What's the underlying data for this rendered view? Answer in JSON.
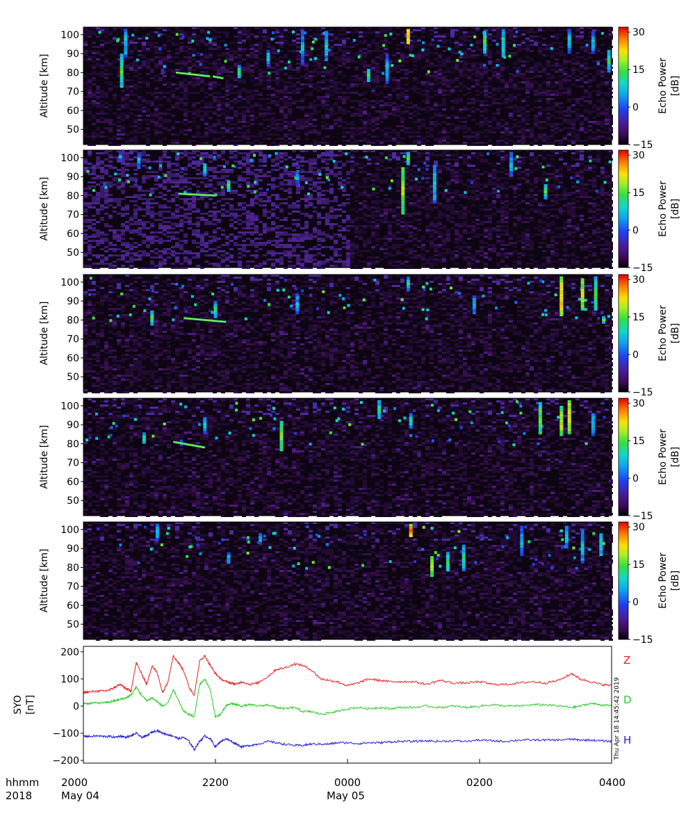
{
  "chart_data": [
    {
      "type": "heatmap",
      "panel": 1,
      "ylabel": "Altitude [km]",
      "yticks": [
        "50",
        "60",
        "70",
        "80",
        "90",
        "100"
      ],
      "ylim": [
        42,
        104
      ],
      "colorbar": {
        "label_line1": "Echo Power",
        "label_line2": "[dB]",
        "ticks": [
          "30",
          "15",
          "0",
          "−15"
        ],
        "range": [
          -15,
          32
        ]
      },
      "echo_layers": [
        {
          "t0": 23.5,
          "t1": 24.8,
          "alt0": 80,
          "alt1": 78
        },
        {
          "t0": 24.9,
          "t1": 25.3,
          "alt0": 78,
          "alt1": 77
        }
      ],
      "columns": [
        {
          "t": 21.45,
          "alt0": 72,
          "alt1": 90,
          "peak_db": 18
        },
        {
          "t": 21.6,
          "alt0": 88,
          "alt1": 103,
          "peak_db": 12
        },
        {
          "t": 23.0,
          "alt0": 79,
          "alt1": 82,
          "peak_db": 8
        },
        {
          "t": 25.9,
          "alt0": 77,
          "alt1": 84,
          "peak_db": 14
        },
        {
          "t": 27.0,
          "alt0": 83,
          "alt1": 92,
          "peak_db": 12
        },
        {
          "t": 28.3,
          "alt0": 84,
          "alt1": 102,
          "peak_db": 10
        },
        {
          "t": 29.2,
          "alt0": 86,
          "alt1": 102,
          "peak_db": 12
        },
        {
          "t": 30.8,
          "alt0": 75,
          "alt1": 82,
          "peak_db": 16
        },
        {
          "t": 31.5,
          "alt0": 74,
          "alt1": 90,
          "peak_db": 10
        },
        {
          "t": 32.3,
          "alt0": 95,
          "alt1": 103,
          "peak_db": 30
        },
        {
          "t": 35.2,
          "alt0": 90,
          "alt1": 102,
          "peak_db": 18
        },
        {
          "t": 35.9,
          "alt0": 88,
          "alt1": 103,
          "peak_db": 14
        },
        {
          "t": 38.4,
          "alt0": 90,
          "alt1": 103,
          "peak_db": 12
        },
        {
          "t": 39.3,
          "alt0": 90,
          "alt1": 102,
          "peak_db": 10
        },
        {
          "t": 39.9,
          "alt0": 80,
          "alt1": 92,
          "peak_db": 16
        }
      ]
    },
    {
      "type": "heatmap",
      "panel": 2,
      "ylabel": "Altitude [km]",
      "yticks": [
        "50",
        "60",
        "70",
        "80",
        "90",
        "100"
      ],
      "ylim": [
        42,
        104
      ],
      "colorbar": {
        "label_line1": "Echo Power",
        "label_line2": "[dB]",
        "ticks": [
          "30",
          "15",
          "0",
          "−15"
        ],
        "range": [
          -15,
          32
        ]
      },
      "echo_layers": [
        {
          "t0": 23.6,
          "t1": 25.0,
          "alt0": 81,
          "alt1": 80
        }
      ],
      "columns": [
        {
          "t": 21.4,
          "alt0": 98,
          "alt1": 103,
          "peak_db": 8
        },
        {
          "t": 22.1,
          "alt0": 94,
          "alt1": 103,
          "peak_db": 10
        },
        {
          "t": 24.6,
          "alt0": 90,
          "alt1": 97,
          "peak_db": 14
        },
        {
          "t": 25.5,
          "alt0": 82,
          "alt1": 88,
          "peak_db": 18
        },
        {
          "t": 28.1,
          "alt0": 85,
          "alt1": 93,
          "peak_db": 8
        },
        {
          "t": 32.1,
          "alt0": 70,
          "alt1": 95,
          "peak_db": 22
        },
        {
          "t": 32.3,
          "alt0": 96,
          "alt1": 103,
          "peak_db": 18
        },
        {
          "t": 33.3,
          "alt0": 76,
          "alt1": 96,
          "peak_db": 12
        },
        {
          "t": 36.2,
          "alt0": 90,
          "alt1": 103,
          "peak_db": 10
        },
        {
          "t": 37.5,
          "alt0": 78,
          "alt1": 86,
          "peak_db": 16
        }
      ]
    },
    {
      "type": "heatmap",
      "panel": 3,
      "ylabel": "Altitude [km]",
      "yticks": [
        "50",
        "60",
        "70",
        "80",
        "90",
        "100"
      ],
      "ylim": [
        42,
        104
      ],
      "colorbar": {
        "label_line1": "Echo Power",
        "label_line2": "[dB]",
        "ticks": [
          "30",
          "15",
          "0",
          "−15"
        ],
        "range": [
          -15,
          32
        ]
      },
      "echo_layers": [
        {
          "t0": 23.8,
          "t1": 25.4,
          "alt0": 81,
          "alt1": 79
        }
      ],
      "columns": [
        {
          "t": 22.6,
          "alt0": 77,
          "alt1": 85,
          "peak_db": 18
        },
        {
          "t": 25.0,
          "alt0": 81,
          "alt1": 90,
          "peak_db": 14
        },
        {
          "t": 28.1,
          "alt0": 83,
          "alt1": 94,
          "peak_db": 10
        },
        {
          "t": 32.3,
          "alt0": 95,
          "alt1": 103,
          "peak_db": 12
        },
        {
          "t": 34.8,
          "alt0": 83,
          "alt1": 93,
          "peak_db": 10
        },
        {
          "t": 38.1,
          "alt0": 82,
          "alt1": 103,
          "peak_db": 28
        },
        {
          "t": 38.9,
          "alt0": 85,
          "alt1": 102,
          "peak_db": 24
        },
        {
          "t": 39.4,
          "alt0": 85,
          "alt1": 103,
          "peak_db": 18
        },
        {
          "t": 39.7,
          "alt0": 78,
          "alt1": 82,
          "peak_db": 16
        }
      ]
    },
    {
      "type": "heatmap",
      "panel": 4,
      "ylabel": "Altitude [km]",
      "yticks": [
        "50",
        "60",
        "70",
        "80",
        "90",
        "100"
      ],
      "ylim": [
        42,
        104
      ],
      "colorbar": {
        "label_line1": "Echo Power",
        "label_line2": "[dB]",
        "ticks": [
          "30",
          "15",
          "0",
          "−15"
        ],
        "range": [
          -15,
          32
        ]
      },
      "echo_layers": [
        {
          "t0": 23.4,
          "t1": 24.6,
          "alt0": 81,
          "alt1": 78
        }
      ],
      "columns": [
        {
          "t": 22.3,
          "alt0": 80,
          "alt1": 86,
          "peak_db": 14
        },
        {
          "t": 24.6,
          "alt0": 85,
          "alt1": 94,
          "peak_db": 12
        },
        {
          "t": 27.5,
          "alt0": 76,
          "alt1": 92,
          "peak_db": 20
        },
        {
          "t": 31.2,
          "alt0": 93,
          "alt1": 103,
          "peak_db": 14
        },
        {
          "t": 32.4,
          "alt0": 88,
          "alt1": 96,
          "peak_db": 12
        },
        {
          "t": 37.3,
          "alt0": 85,
          "alt1": 102,
          "peak_db": 20
        },
        {
          "t": 38.1,
          "alt0": 84,
          "alt1": 100,
          "peak_db": 24
        },
        {
          "t": 38.4,
          "alt0": 85,
          "alt1": 103,
          "peak_db": 26
        },
        {
          "t": 39.3,
          "alt0": 84,
          "alt1": 96,
          "peak_db": 12
        }
      ]
    },
    {
      "type": "heatmap",
      "panel": 5,
      "ylabel": "Altitude [km]",
      "yticks": [
        "50",
        "60",
        "70",
        "80",
        "90",
        "100"
      ],
      "ylim": [
        42,
        104
      ],
      "colorbar": {
        "label_line1": "Echo Power",
        "label_line2": "[dB]",
        "ticks": [
          "30",
          "15",
          "0",
          "−15"
        ],
        "range": [
          -15,
          32
        ]
      },
      "echo_layers": [],
      "columns": [
        {
          "t": 22.8,
          "alt0": 94,
          "alt1": 103,
          "peak_db": 12
        },
        {
          "t": 25.5,
          "alt0": 82,
          "alt1": 88,
          "peak_db": 12
        },
        {
          "t": 26.7,
          "alt0": 92,
          "alt1": 98,
          "peak_db": 10
        },
        {
          "t": 32.4,
          "alt0": 96,
          "alt1": 103,
          "peak_db": 30
        },
        {
          "t": 33.2,
          "alt0": 75,
          "alt1": 86,
          "peak_db": 22
        },
        {
          "t": 33.8,
          "alt0": 78,
          "alt1": 88,
          "peak_db": 16
        },
        {
          "t": 34.4,
          "alt0": 78,
          "alt1": 92,
          "peak_db": 14
        },
        {
          "t": 36.6,
          "alt0": 86,
          "alt1": 102,
          "peak_db": 10
        },
        {
          "t": 38.3,
          "alt0": 90,
          "alt1": 102,
          "peak_db": 12
        },
        {
          "t": 38.9,
          "alt0": 82,
          "alt1": 100,
          "peak_db": 12
        },
        {
          "t": 39.6,
          "alt0": 86,
          "alt1": 98,
          "peak_db": 14
        }
      ]
    },
    {
      "type": "line",
      "panel": 6,
      "ylabel_line1": "SYO",
      "ylabel_line2": "[nT]",
      "yticks": [
        "200",
        "100",
        "0",
        "−100",
        "−200"
      ],
      "ylim": [
        -210,
        220
      ],
      "timestamp": "Thu Apr 18 14:45:42 2019",
      "x_units": "hours since 2018 May 04 0000 UT",
      "series": [
        {
          "name": "Z",
          "color": "#e02020",
          "x": [
            20.0,
            20.2,
            20.5,
            20.8,
            21.0,
            21.2,
            21.4,
            21.6,
            21.8,
            22.0,
            22.2,
            22.4,
            22.6,
            22.8,
            23.0,
            23.2,
            23.4,
            23.6,
            23.8,
            24.0,
            24.2,
            24.4,
            24.6,
            24.8,
            25.0,
            25.2,
            25.4,
            25.6,
            25.8,
            26.0,
            26.3,
            26.6,
            27.0,
            27.3,
            27.6,
            28.0,
            28.3,
            28.6,
            29.0,
            29.3,
            29.6,
            30.0,
            30.4,
            30.8,
            31.2,
            31.6,
            32.0,
            32.5,
            33.0,
            33.5,
            34.0,
            34.5,
            35.0,
            35.5,
            36.0,
            36.5,
            37.0,
            37.5,
            38.0,
            38.5,
            38.8,
            39.2,
            39.6,
            40.0
          ],
          "y": [
            50,
            52,
            55,
            55,
            60,
            70,
            80,
            65,
            55,
            160,
            120,
            80,
            150,
            120,
            50,
            90,
            185,
            160,
            130,
            70,
            40,
            165,
            185,
            150,
            120,
            100,
            90,
            85,
            80,
            90,
            80,
            85,
            110,
            135,
            140,
            155,
            150,
            135,
            100,
            95,
            90,
            75,
            85,
            100,
            95,
            90,
            90,
            90,
            80,
            95,
            85,
            85,
            90,
            80,
            80,
            85,
            90,
            85,
            95,
            120,
            100,
            90,
            80,
            75
          ]
        },
        {
          "name": "D",
          "color": "#22cc22",
          "x": [
            20.0,
            20.2,
            20.5,
            20.8,
            21.0,
            21.2,
            21.4,
            21.6,
            21.8,
            22.0,
            22.2,
            22.4,
            22.6,
            22.8,
            23.0,
            23.2,
            23.4,
            23.6,
            23.8,
            24.0,
            24.2,
            24.4,
            24.6,
            24.8,
            25.0,
            25.2,
            25.4,
            25.6,
            25.8,
            26.0,
            26.3,
            26.6,
            27.0,
            27.3,
            27.6,
            28.0,
            28.3,
            28.6,
            29.0,
            29.3,
            29.6,
            30.0,
            30.4,
            30.8,
            31.2,
            31.6,
            32.0,
            32.5,
            33.0,
            33.5,
            34.0,
            34.5,
            35.0,
            35.5,
            36.0,
            36.5,
            37.0,
            37.5,
            38.0,
            38.5,
            38.8,
            39.2,
            39.6,
            40.0
          ],
          "y": [
            10,
            10,
            12,
            12,
            15,
            20,
            25,
            30,
            40,
            70,
            40,
            20,
            30,
            15,
            0,
            10,
            60,
            20,
            -20,
            -30,
            -40,
            80,
            100,
            60,
            -40,
            -30,
            0,
            10,
            5,
            0,
            5,
            0,
            5,
            -5,
            -10,
            -5,
            -20,
            -20,
            -30,
            -25,
            -20,
            -10,
            -5,
            -10,
            -5,
            -10,
            -5,
            -5,
            0,
            -5,
            0,
            -5,
            0,
            5,
            0,
            0,
            5,
            5,
            0,
            -5,
            0,
            10,
            5,
            0
          ]
        },
        {
          "name": "H",
          "color": "#2020d0",
          "x": [
            20.0,
            20.2,
            20.5,
            20.8,
            21.0,
            21.2,
            21.4,
            21.6,
            21.8,
            22.0,
            22.2,
            22.4,
            22.6,
            22.8,
            23.0,
            23.2,
            23.4,
            23.6,
            23.8,
            24.0,
            24.2,
            24.4,
            24.6,
            24.8,
            25.0,
            25.2,
            25.4,
            25.6,
            25.8,
            26.0,
            26.3,
            26.6,
            27.0,
            27.3,
            27.6,
            28.0,
            28.3,
            28.6,
            29.0,
            29.3,
            29.6,
            30.0,
            30.4,
            30.8,
            31.2,
            31.6,
            32.0,
            32.5,
            33.0,
            33.5,
            34.0,
            34.5,
            35.0,
            35.5,
            36.0,
            36.5,
            37.0,
            37.5,
            38.0,
            38.5,
            38.8,
            39.2,
            39.6,
            40.0
          ],
          "y": [
            -110,
            -112,
            -110,
            -112,
            -112,
            -115,
            -110,
            -115,
            -110,
            -100,
            -115,
            -110,
            -95,
            -90,
            -100,
            -105,
            -110,
            -120,
            -115,
            -130,
            -160,
            -130,
            -110,
            -120,
            -150,
            -130,
            -120,
            -130,
            -140,
            -150,
            -145,
            -140,
            -130,
            -135,
            -140,
            -145,
            -145,
            -140,
            -140,
            -140,
            -135,
            -135,
            -138,
            -135,
            -135,
            -132,
            -130,
            -130,
            -128,
            -130,
            -128,
            -130,
            -125,
            -128,
            -130,
            -125,
            -125,
            -125,
            -125,
            -122,
            -125,
            -125,
            -128,
            -130
          ]
        }
      ]
    }
  ],
  "time_axis": {
    "row_label_1": "hhmm",
    "row_label_2": "2018",
    "ticks": [
      {
        "time": "2000",
        "date": "May 04"
      },
      {
        "time": "2200",
        "date": ""
      },
      {
        "time": "0000",
        "date": "May 05"
      },
      {
        "time": "0200",
        "date": ""
      },
      {
        "time": "0400",
        "date": ""
      }
    ],
    "range_hours": [
      20,
      40
    ]
  }
}
